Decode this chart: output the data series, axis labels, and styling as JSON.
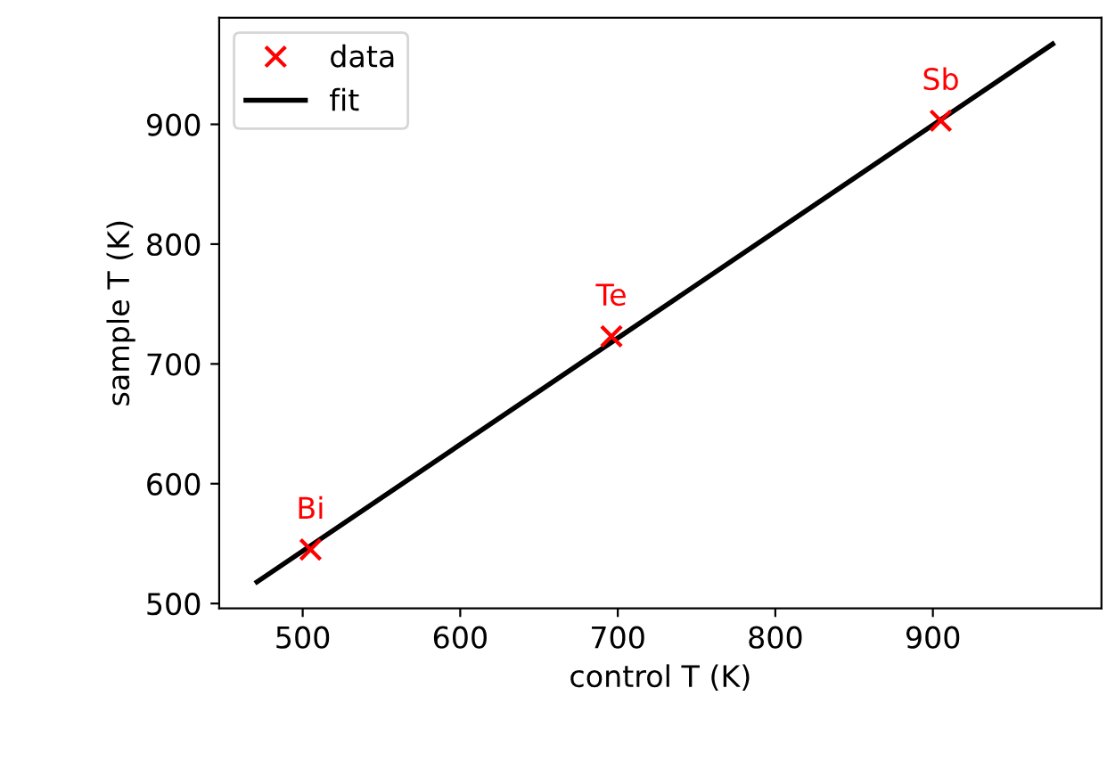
{
  "chart_data": {
    "type": "scatter",
    "xlabel": "control T (K)",
    "ylabel": "sample T (K)",
    "series": [
      {
        "name": "data",
        "color": "#ff0000",
        "x": [
          505,
          696,
          905
        ],
        "values": [
          545,
          723,
          903
        ],
        "marker": "cross"
      },
      {
        "name": "fit",
        "type": "line",
        "color": "#000000",
        "x": [
          471,
          976
        ],
        "values": [
          518,
          967
        ],
        "marker": "none",
        "line_style": "solid"
      }
    ],
    "annotations": [
      {
        "text": "Bi",
        "x": 505,
        "y": 545
      },
      {
        "text": "Te",
        "x": 696,
        "y": 723
      },
      {
        "text": "Sb",
        "x": 905,
        "y": 903
      }
    ],
    "xlim": [
      447,
      1007
    ],
    "ylim": [
      496,
      989
    ],
    "xticks": [
      500,
      600,
      700,
      800,
      900
    ],
    "yticks": [
      500,
      600,
      700,
      800,
      900
    ],
    "grid": false,
    "legend": "top left"
  }
}
